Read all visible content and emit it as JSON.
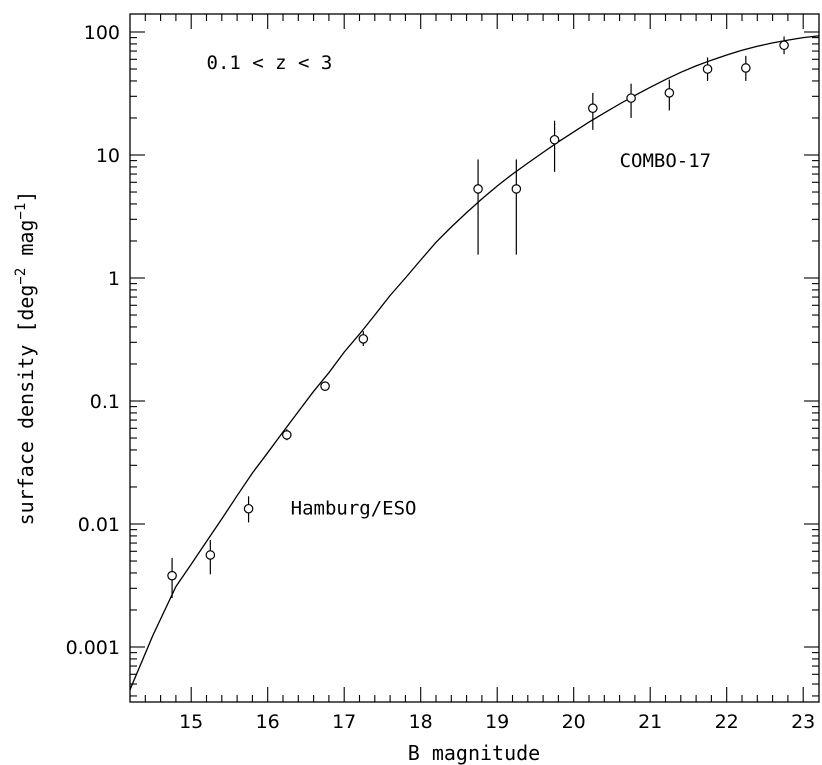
{
  "chart_data": {
    "type": "scatter",
    "title": "",
    "xlabel": "B magnitude",
    "ylabel": "surface density [deg^-2 mag^-1]",
    "ylabel_parts": {
      "a": "surface density [deg",
      "sup1": "−2",
      "b": " mag",
      "sup2": "−1",
      "c": "]"
    },
    "xlim": [
      14.2,
      23.2
    ],
    "ylim": [
      0.0004,
      150
    ],
    "yscale": "log",
    "grid": false,
    "legend": "none",
    "x_ticks": [
      "15",
      "16",
      "17",
      "18",
      "19",
      "20",
      "21",
      "22",
      "23"
    ],
    "y_ticks": [
      "0.001",
      "0.01",
      "0.1",
      "1",
      "10",
      "100"
    ],
    "annotations": [
      {
        "text": "0.1 < z < 3",
        "at": [
          15.2,
          50
        ]
      },
      {
        "text": "Hamburg/ESO",
        "at": [
          16.3,
          0.012
        ]
      },
      {
        "text": "COMBO-17",
        "at": [
          20.6,
          8
        ]
      }
    ],
    "series": [
      {
        "name": "data",
        "kind": "points_with_errors",
        "points": [
          {
            "x": 14.75,
            "y": 0.0038,
            "ylo": 0.0025,
            "yhi": 0.0053
          },
          {
            "x": 15.25,
            "y": 0.0056,
            "ylo": 0.0039,
            "yhi": 0.0074
          },
          {
            "x": 15.75,
            "y": 0.0133,
            "ylo": 0.0103,
            "yhi": 0.0168
          },
          {
            "x": 16.25,
            "y": 0.053,
            "ylo": 0.048,
            "yhi": 0.059
          },
          {
            "x": 16.75,
            "y": 0.132,
            "ylo": 0.122,
            "yhi": 0.143
          },
          {
            "x": 17.25,
            "y": 0.32,
            "ylo": 0.28,
            "yhi": 0.37
          },
          {
            "x": 18.75,
            "y": 5.3,
            "ylo": 1.55,
            "yhi": 9.2
          },
          {
            "x": 19.25,
            "y": 5.3,
            "ylo": 1.55,
            "yhi": 9.2
          },
          {
            "x": 19.75,
            "y": 13.3,
            "ylo": 7.3,
            "yhi": 19.0
          },
          {
            "x": 20.25,
            "y": 24,
            "ylo": 16,
            "yhi": 32
          },
          {
            "x": 20.75,
            "y": 29,
            "ylo": 20,
            "yhi": 38
          },
          {
            "x": 21.25,
            "y": 32,
            "ylo": 23,
            "yhi": 41
          },
          {
            "x": 21.75,
            "y": 50,
            "ylo": 40,
            "yhi": 62
          },
          {
            "x": 22.25,
            "y": 51,
            "ylo": 40,
            "yhi": 64
          },
          {
            "x": 22.75,
            "y": 78,
            "ylo": 66,
            "yhi": 92
          }
        ]
      },
      {
        "name": "model",
        "kind": "line",
        "x": [
          14.2,
          14.5,
          14.8,
          15.0,
          15.2,
          15.4,
          15.6,
          15.8,
          16.0,
          16.2,
          16.4,
          16.6,
          16.8,
          17.0,
          17.2,
          17.4,
          17.6,
          17.8,
          18.0,
          18.2,
          18.4,
          18.6,
          18.8,
          19.0,
          19.2,
          19.4,
          19.6,
          19.8,
          20.0,
          20.2,
          20.4,
          20.6,
          20.8,
          21.0,
          21.2,
          21.4,
          21.6,
          21.8,
          22.0,
          22.2,
          22.4,
          22.6,
          22.8,
          23.0,
          23.2
        ],
        "y": [
          0.00045,
          0.00125,
          0.0031,
          0.0047,
          0.0072,
          0.011,
          0.017,
          0.026,
          0.038,
          0.056,
          0.082,
          0.12,
          0.17,
          0.25,
          0.35,
          0.5,
          0.72,
          1.0,
          1.4,
          1.95,
          2.6,
          3.4,
          4.4,
          5.6,
          7.0,
          8.6,
          10.5,
          12.8,
          15.4,
          18.5,
          22.0,
          26.0,
          30.5,
          35.5,
          41.0,
          47.0,
          53.0,
          59.0,
          65.0,
          71.0,
          76.5,
          81.5,
          86.0,
          90.0,
          93.0
        ]
      }
    ]
  }
}
